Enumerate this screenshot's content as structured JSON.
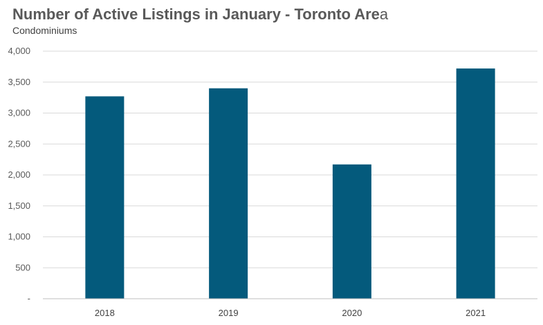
{
  "chart_data": {
    "type": "bar",
    "title_main": "Number of Active Listings in January - Toronto Are",
    "title_tail": "a",
    "subtitle": "Condominiums",
    "categories": [
      "2018",
      "2019",
      "2020",
      "2021"
    ],
    "values": [
      3270,
      3400,
      2170,
      3720
    ],
    "ylim": [
      0,
      4000
    ],
    "yticks": [
      0,
      500,
      1000,
      1500,
      2000,
      2500,
      3000,
      3500,
      4000
    ],
    "ytick_labels": [
      "-",
      "500",
      "1,000",
      "1,500",
      "2,000",
      "2,500",
      "3,000",
      "3,500",
      "4,000"
    ],
    "grid": true,
    "legend": "none",
    "bar_color": "#045a7c",
    "grid_color": "#d9d9d9"
  }
}
